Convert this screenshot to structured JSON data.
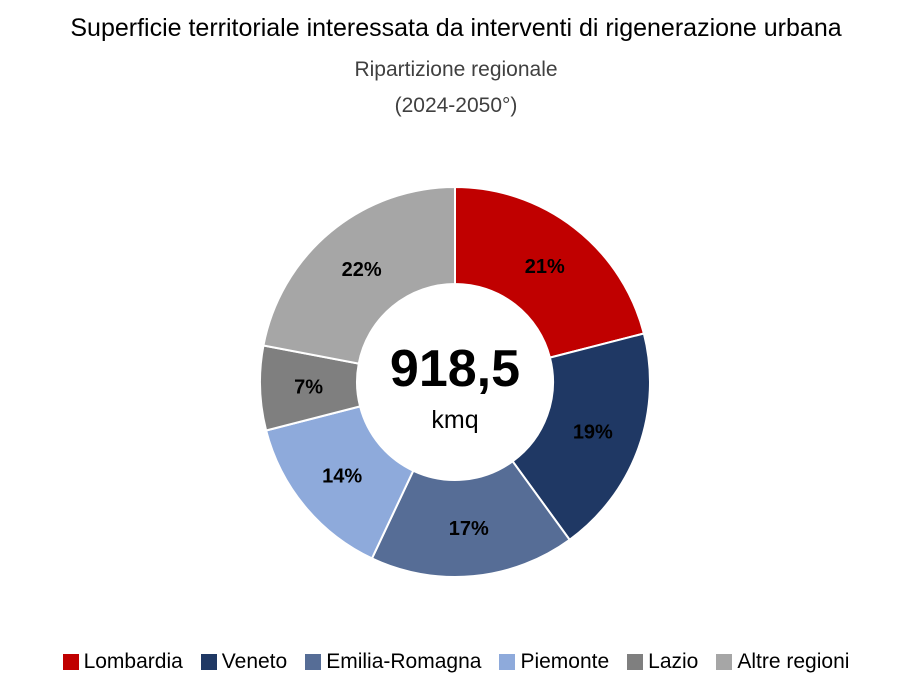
{
  "chart_data": {
    "type": "pie",
    "title": "Superficie territoriale interessata da interventi di rigenerazione urbana",
    "subtitle_line1": "Ripartizione regionale",
    "subtitle_line2": "(2024-2050°)",
    "center_value": "918,5",
    "center_unit": "kmq",
    "legend_position": "bottom",
    "slices": [
      {
        "label": "Lombardia",
        "value": 21,
        "data_label": "21%",
        "color": "#c00000"
      },
      {
        "label": "Veneto",
        "value": 19,
        "data_label": "19%",
        "color": "#1f3864"
      },
      {
        "label": "Emilia-Romagna",
        "value": 17,
        "data_label": "17%",
        "color": "#566d96"
      },
      {
        "label": "Piemonte",
        "value": 14,
        "data_label": "14%",
        "color": "#8eaadb"
      },
      {
        "label": "Lazio",
        "value": 7,
        "data_label": "7%",
        "color": "#7f7f7f"
      },
      {
        "label": "Altre regioni",
        "value": 22,
        "data_label": "22%",
        "color": "#a6a6a6"
      }
    ]
  }
}
